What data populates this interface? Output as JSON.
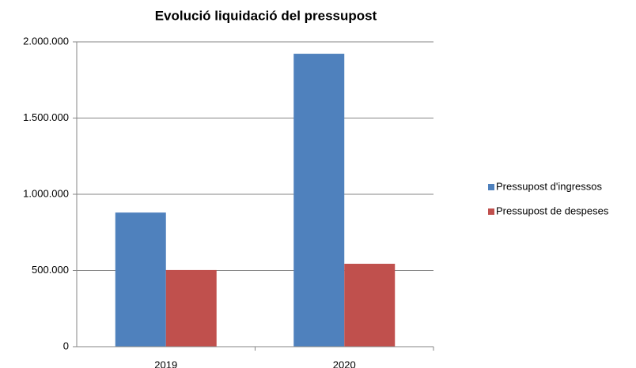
{
  "chart_data": {
    "type": "bar",
    "title": "Evolució liquidació del pressupost",
    "categories": [
      "2019",
      "2020"
    ],
    "series": [
      {
        "name": "Pressupost d'ingressos",
        "color": "#4f81bd",
        "values": [
          880000,
          1922000
        ]
      },
      {
        "name": "Pressupost de despeses",
        "color": "#c0504d",
        "values": [
          503000,
          544000
        ]
      }
    ],
    "ylim": [
      0,
      2000000
    ],
    "yticks": [
      0,
      {
        "value": 500000,
        "label": "500.000"
      },
      {
        "value": 1000000,
        "label": "1.000.000"
      },
      {
        "value": 1500000,
        "label": "1.500.000"
      },
      {
        "value": 2000000,
        "label": "2.000.000"
      }
    ],
    "grid": true,
    "legend": "right"
  }
}
